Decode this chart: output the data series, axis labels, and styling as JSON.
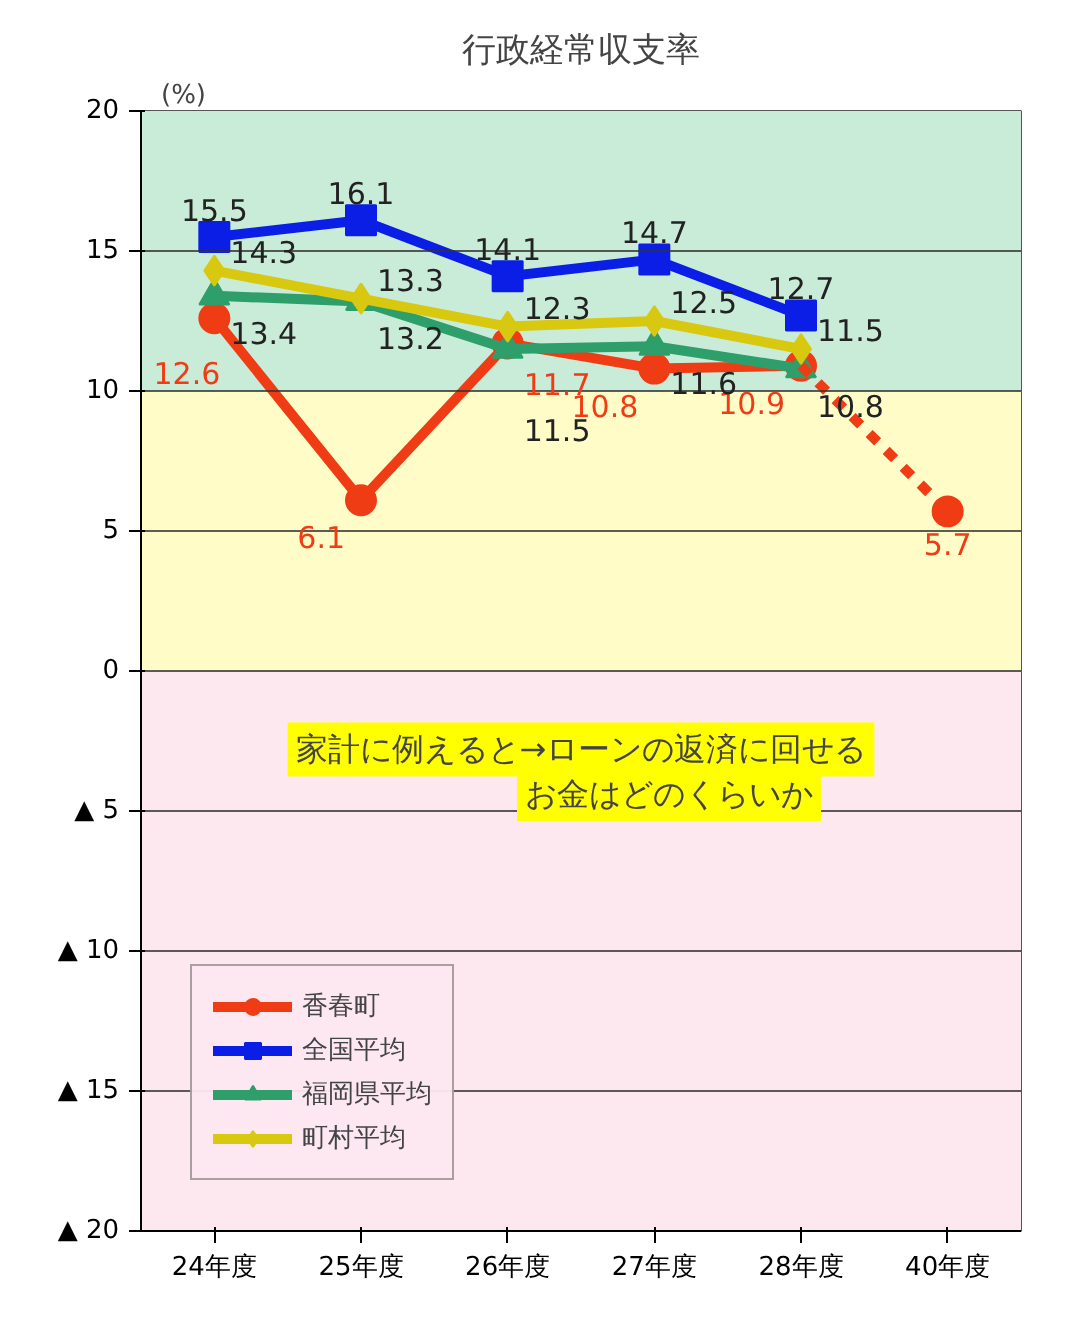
{
  "chart_data": {
    "type": "line",
    "title": "行政経常収支率",
    "ylabel": "(%)",
    "categories": [
      "24年度",
      "25年度",
      "26年度",
      "27年度",
      "28年度",
      "40年度"
    ],
    "ylim": [
      -20,
      20
    ],
    "yticks": [
      {
        "value": -20,
        "label": "▲ 20"
      },
      {
        "value": -15,
        "label": "▲ 15"
      },
      {
        "value": -10,
        "label": "▲ 10"
      },
      {
        "value": -5,
        "label": "▲ 5"
      },
      0,
      5,
      10,
      15,
      20
    ],
    "grid": "y",
    "legend": "bottom left",
    "bands": [
      {
        "axis": "y",
        "from": 10,
        "to": 20,
        "color": "#c8ecd8"
      },
      {
        "axis": "y",
        "from": 0,
        "to": 10,
        "color": "#fffcc8"
      },
      {
        "axis": "y",
        "from": -20,
        "to": 0,
        "color": "#fde8f0"
      }
    ],
    "annotations": [
      "家計に例えると→ローンの返済に回せる",
      "お金はどのくらいか"
    ],
    "series": [
      {
        "name": "香春町",
        "color": "#f03c14",
        "marker": "circle",
        "values": [
          12.6,
          6.1,
          11.7,
          10.8,
          10.9,
          null
        ],
        "value_labels": [
          "12.6",
          "6.1",
          "11.7",
          "10.8",
          "10.9",
          null
        ]
      },
      {
        "name": "全国平均",
        "color": "#0a1ee6",
        "marker": "square",
        "values": [
          15.5,
          16.1,
          14.1,
          14.7,
          12.7,
          null
        ],
        "value_labels": [
          "15.5",
          "16.1",
          "14.1",
          "14.7",
          "12.7",
          null
        ]
      },
      {
        "name": "福岡県平均",
        "color": "#2e9e6a",
        "marker": "triangle",
        "values": [
          13.4,
          13.2,
          11.5,
          11.6,
          10.8,
          null
        ],
        "value_labels": [
          "13.4",
          "13.2",
          "11.5",
          "11.6",
          "10.8",
          null
        ]
      },
      {
        "name": "町村平均",
        "color": "#d8c810",
        "marker": "diamond",
        "values": [
          14.3,
          13.3,
          12.3,
          12.5,
          11.5,
          null
        ],
        "value_labels": [
          "14.3",
          "13.3",
          "12.3",
          "12.5",
          "11.5",
          null
        ]
      },
      {
        "color": "#f03c14",
        "marker": "circle",
        "line_style": "dashed",
        "values": [
          null,
          null,
          null,
          null,
          10.9,
          5.7
        ],
        "value_labels": [
          null,
          null,
          null,
          null,
          null,
          "5.7"
        ]
      }
    ]
  }
}
